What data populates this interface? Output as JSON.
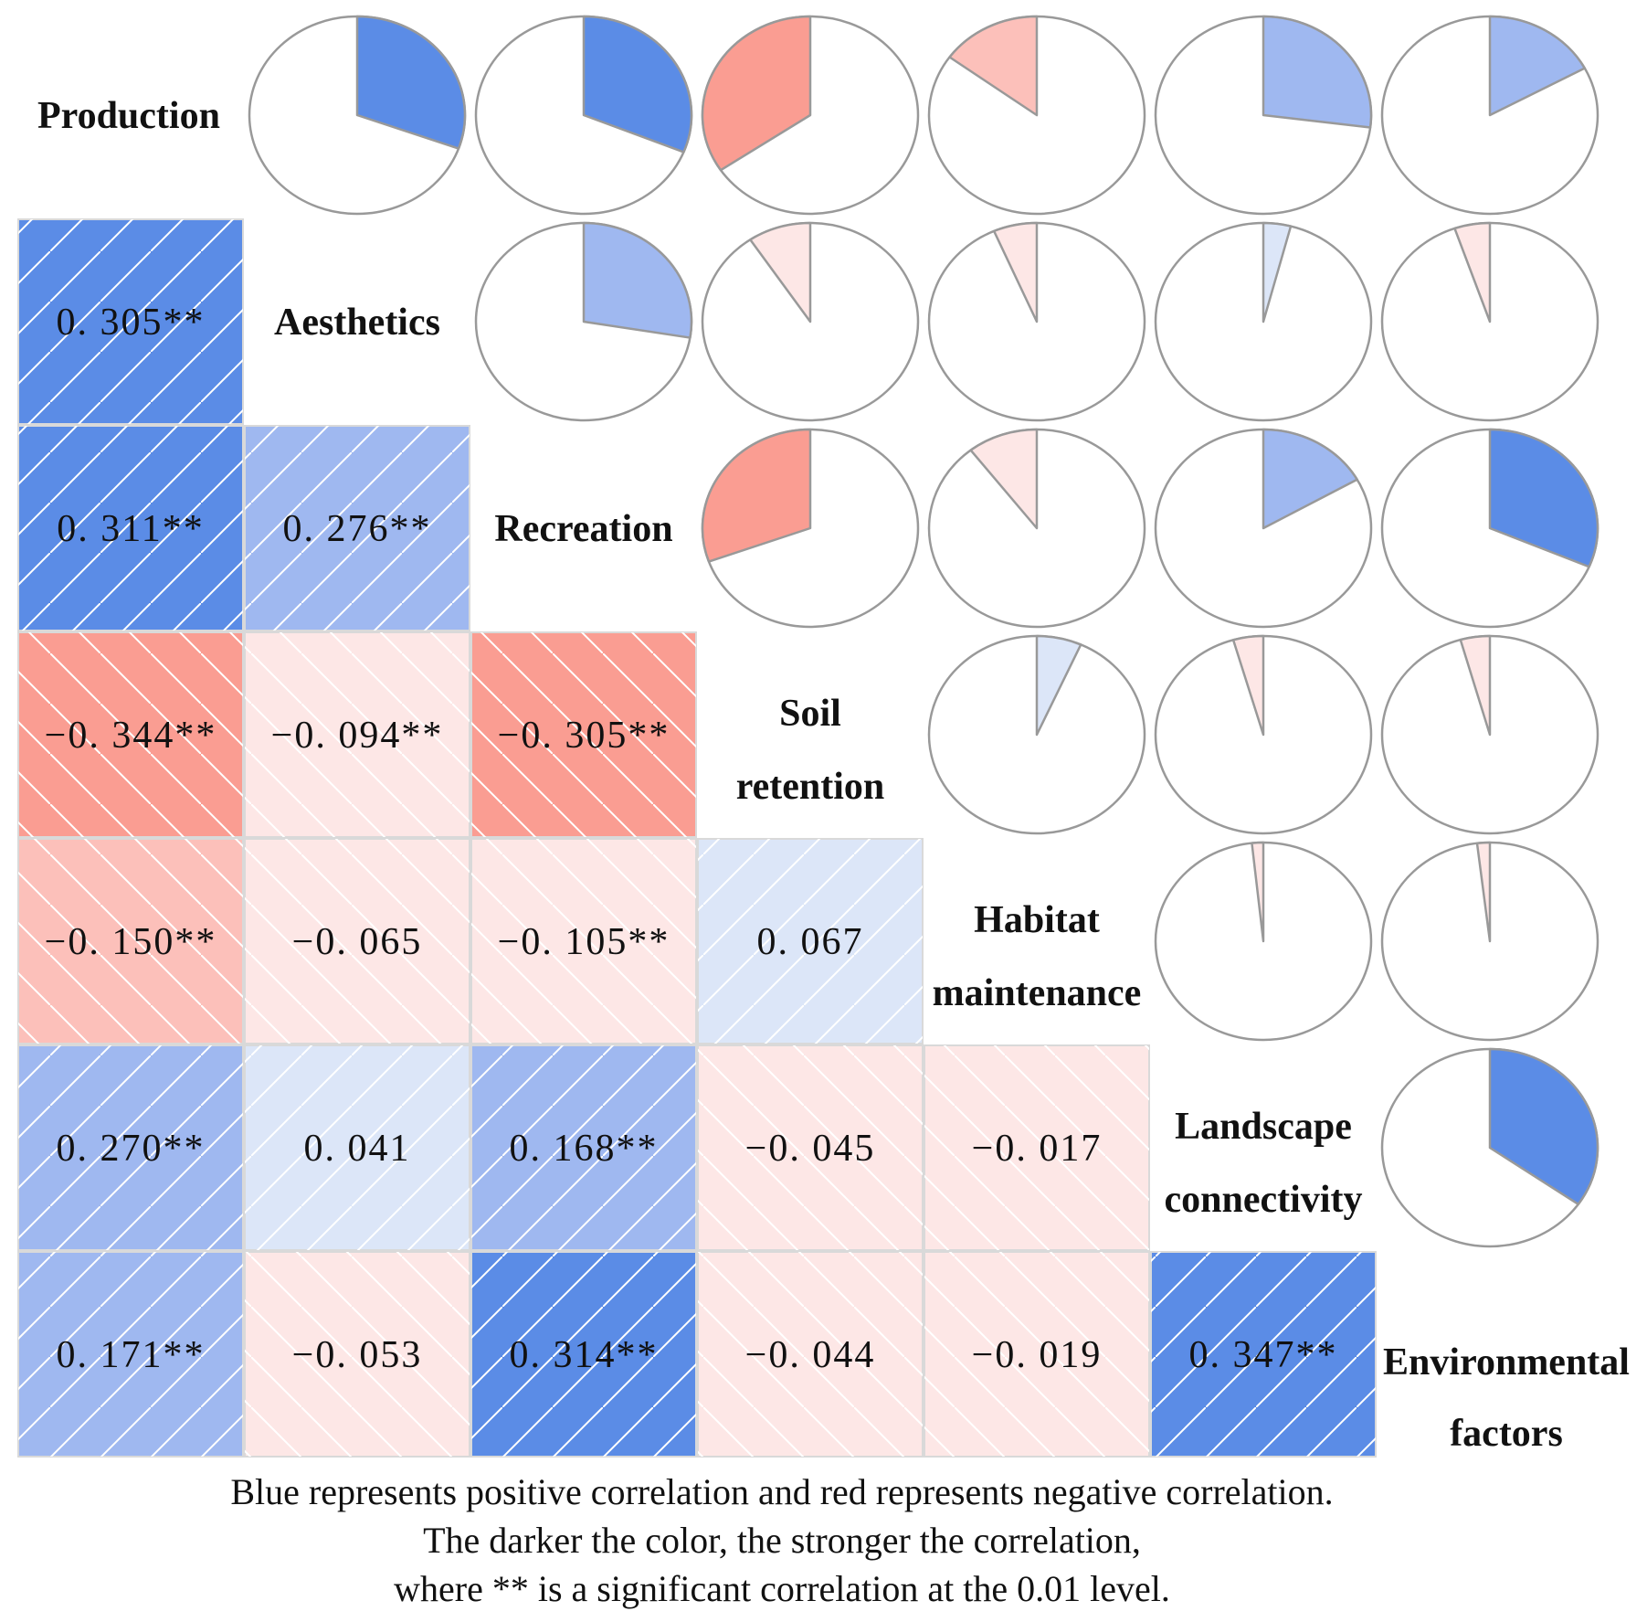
{
  "chart_data": {
    "type": "heatmap",
    "variables": [
      [
        "Production"
      ],
      [
        "Aesthetics"
      ],
      [
        "Recreation"
      ],
      [
        "Soil",
        "retention"
      ],
      [
        "Habitat",
        "maintenance"
      ],
      [
        "Landscape",
        "connectivity"
      ],
      [
        "Environmental",
        "factors"
      ]
    ],
    "lower_triangle": {
      "rows": [
        {
          "row": 1,
          "cells": [
            {
              "col": 0,
              "value": 0.305,
              "label": "0. 305**"
            }
          ]
        },
        {
          "row": 2,
          "cells": [
            {
              "col": 0,
              "value": 0.311,
              "label": "0. 311**"
            },
            {
              "col": 1,
              "value": 0.276,
              "label": "0. 276**"
            }
          ]
        },
        {
          "row": 3,
          "cells": [
            {
              "col": 0,
              "value": -0.344,
              "label": "−0. 344**"
            },
            {
              "col": 1,
              "value": -0.094,
              "label": "−0. 094**"
            },
            {
              "col": 2,
              "value": -0.305,
              "label": "−0. 305**"
            }
          ]
        },
        {
          "row": 4,
          "cells": [
            {
              "col": 0,
              "value": -0.15,
              "label": "−0. 150**"
            },
            {
              "col": 1,
              "value": -0.065,
              "label": "−0. 065"
            },
            {
              "col": 2,
              "value": -0.105,
              "label": "−0. 105**"
            },
            {
              "col": 3,
              "value": 0.067,
              "label": "0. 067"
            }
          ]
        },
        {
          "row": 5,
          "cells": [
            {
              "col": 0,
              "value": 0.27,
              "label": "0. 270**"
            },
            {
              "col": 1,
              "value": 0.041,
              "label": "0. 041"
            },
            {
              "col": 2,
              "value": 0.168,
              "label": "0. 168**"
            },
            {
              "col": 3,
              "value": -0.045,
              "label": "−0. 045"
            },
            {
              "col": 4,
              "value": -0.017,
              "label": "−0. 017"
            }
          ]
        },
        {
          "row": 6,
          "cells": [
            {
              "col": 0,
              "value": 0.171,
              "label": "0. 171**"
            },
            {
              "col": 1,
              "value": -0.053,
              "label": "−0. 053"
            },
            {
              "col": 2,
              "value": 0.314,
              "label": "0. 314**"
            },
            {
              "col": 3,
              "value": -0.044,
              "label": "−0. 044"
            },
            {
              "col": 4,
              "value": -0.019,
              "label": "−0. 019"
            },
            {
              "col": 5,
              "value": 0.347,
              "label": "0. 347**"
            }
          ]
        }
      ]
    },
    "upper_triangle_pies": [
      {
        "row": 0,
        "col": 1,
        "value": 0.305
      },
      {
        "row": 0,
        "col": 2,
        "value": 0.311
      },
      {
        "row": 0,
        "col": 3,
        "value": -0.344
      },
      {
        "row": 0,
        "col": 4,
        "value": -0.15
      },
      {
        "row": 0,
        "col": 5,
        "value": 0.27
      },
      {
        "row": 0,
        "col": 6,
        "value": 0.171
      },
      {
        "row": 1,
        "col": 2,
        "value": 0.276
      },
      {
        "row": 1,
        "col": 3,
        "value": -0.094
      },
      {
        "row": 1,
        "col": 4,
        "value": -0.065
      },
      {
        "row": 1,
        "col": 5,
        "value": 0.041
      },
      {
        "row": 1,
        "col": 6,
        "value": -0.053
      },
      {
        "row": 2,
        "col": 3,
        "value": -0.305
      },
      {
        "row": 2,
        "col": 4,
        "value": -0.105
      },
      {
        "row": 2,
        "col": 5,
        "value": 0.168
      },
      {
        "row": 2,
        "col": 6,
        "value": 0.314
      },
      {
        "row": 3,
        "col": 4,
        "value": 0.067
      },
      {
        "row": 3,
        "col": 5,
        "value": -0.045
      },
      {
        "row": 3,
        "col": 6,
        "value": -0.044
      },
      {
        "row": 4,
        "col": 5,
        "value": -0.017
      },
      {
        "row": 4,
        "col": 6,
        "value": -0.019
      },
      {
        "row": 5,
        "col": 6,
        "value": 0.347
      }
    ],
    "color_scale": {
      "positive_strong": "#5b8ce6",
      "positive_medium": "#9fb8f0",
      "positive_weak": "#dce6f8",
      "negative_strong": "#fa9d92",
      "negative_medium": "#fcc0ba",
      "negative_weak": "#fde7e6",
      "hatch": "#ffffff",
      "cell_border": "#d9d9d9",
      "pie_outline": "#999999"
    },
    "caption": [
      "Blue represents positive correlation and red represents negative correlation.",
      "The darker the color, the stronger the correlation,",
      "where ** is a significant correlation at the 0.01 level."
    ]
  }
}
